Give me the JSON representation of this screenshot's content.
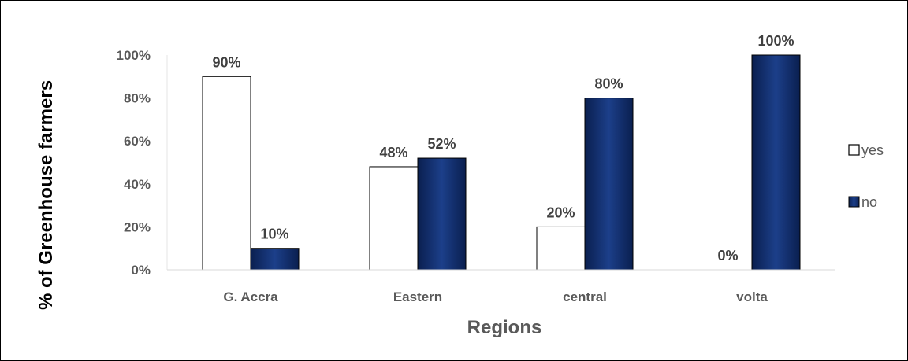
{
  "chart_data": {
    "type": "bar",
    "categories": [
      "G. Accra",
      "Eastern",
      "central",
      "volta"
    ],
    "series": [
      {
        "name": "yes",
        "values": [
          90,
          48,
          20,
          0
        ],
        "labels": [
          "90%",
          "48%",
          "20%",
          "0%"
        ],
        "color": "#ffffff"
      },
      {
        "name": "no",
        "values": [
          10,
          52,
          80,
          100
        ],
        "labels": [
          "10%",
          "52%",
          "80%",
          "100%"
        ],
        "color": "#0d2660"
      }
    ],
    "title": "",
    "xlabel": "Regions",
    "ylabel": "% of Greenhouse farmers",
    "ylim": [
      0,
      100
    ],
    "yticks": [
      {
        "value": 0,
        "label": "0%"
      },
      {
        "value": 20,
        "label": "20%"
      },
      {
        "value": 40,
        "label": "40%"
      },
      {
        "value": 60,
        "label": "60%"
      },
      {
        "value": 80,
        "label": "80%"
      },
      {
        "value": 100,
        "label": "100%"
      }
    ],
    "grid": false,
    "legend": "right"
  }
}
